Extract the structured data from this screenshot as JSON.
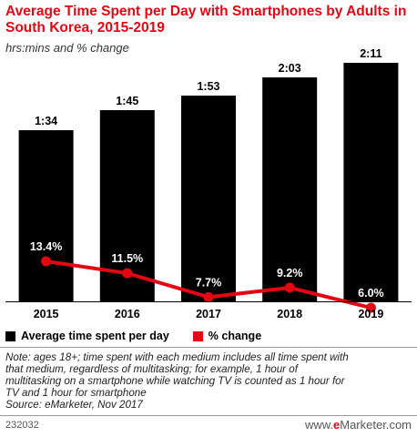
{
  "header": {
    "title": "Average Time Spent per Day with Smartphones by Adults in South Korea, 2015-2019",
    "subtitle": "hrs:mins and % change"
  },
  "chart_data": {
    "type": "bar",
    "categories": [
      "2015",
      "2016",
      "2017",
      "2018",
      "2019"
    ],
    "series": [
      {
        "name": "Average time spent per day",
        "type": "bar",
        "values_minutes": [
          94,
          105,
          113,
          123,
          131
        ],
        "labels": [
          "1:34",
          "1:45",
          "1:53",
          "2:03",
          "2:11"
        ],
        "color": "#000000"
      },
      {
        "name": "% change",
        "type": "line",
        "values": [
          13.4,
          11.5,
          7.7,
          9.2,
          6.0
        ],
        "labels": [
          "13.4%",
          "11.5%",
          "7.7%",
          "9.2%",
          "6.0%"
        ],
        "color": "#e30613"
      }
    ],
    "grid": false,
    "legend_placement": "bottom-left"
  },
  "legend": {
    "bar_label": "Average time spent per day",
    "line_label": "% change",
    "bar_color": "#000000",
    "line_color": "#e30613"
  },
  "footer": {
    "note_line1": "Note: ages 18+; time spent with each medium includes all time spent with",
    "note_line2": "that medium, regardless of multitasking; for example, 1 hour of",
    "note_line3": "multitasking on a smartphone while watching TV is counted as 1 hour for",
    "note_line4": "TV and 1 hour for smartphone",
    "source": "Source: eMarketer, Nov 2017",
    "chart_id": "232032",
    "logo_e": "e",
    "logo_rest": "Marketer",
    "logo_prefix": "www.",
    "logo_suffix": ".com"
  }
}
